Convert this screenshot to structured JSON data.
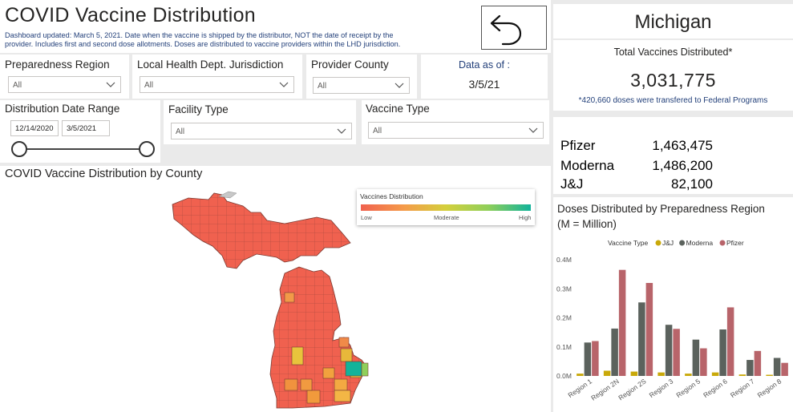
{
  "header": {
    "title": "COVID Vaccine Distribution",
    "subtitle_line1": "Dashboard updated: March 5, 2021. Date when the vaccine is shipped by the distributor, NOT the date of receipt by the",
    "subtitle_line2": "provider. Includes first and second dose allotments. Doses are distributed to vaccine providers within the LHD jurisdiction."
  },
  "filters": {
    "preparedness_region": {
      "label": "Preparedness Region",
      "value": "All"
    },
    "lhd_jurisdiction": {
      "label": "Local Health Dept. Jurisdiction",
      "value": "All"
    },
    "provider_county": {
      "label": "Provider County",
      "value": "All"
    },
    "facility_type": {
      "label": "Facility Type",
      "value": "All"
    },
    "vaccine_type": {
      "label": "Vaccine Type",
      "value": "All"
    },
    "date_range": {
      "label": "Distribution Date Range",
      "start": "12/14/2020",
      "end": "3/5/2021"
    }
  },
  "data_as_of": {
    "label": "Data as of :",
    "value": "3/5/21"
  },
  "state": {
    "name": "Michigan"
  },
  "totals": {
    "label": "Total Vaccines Distributed*",
    "value": "3,031,775",
    "note": "*420,660 doses were transfered to Federal Programs"
  },
  "vaccine_totals": [
    {
      "name": "Pfizer",
      "value": "1,463,475"
    },
    {
      "name": "Moderna",
      "value": "1,486,200"
    },
    {
      "name": "J&J",
      "value": "82,100"
    }
  ],
  "map": {
    "title": "COVID Vaccine Distribution by County",
    "legend_title": "Vaccines Distribution",
    "legend_low": "Low",
    "legend_mid": "Moderate",
    "legend_high": "High"
  },
  "colors": {
    "jj": "#c9a90a",
    "moderna": "#5b625d",
    "pfizer": "#b8646a",
    "map_low": "#f0614f",
    "map_mid": "#d4cf3c",
    "map_high": "#12b39a"
  },
  "chart_data": {
    "type": "bar",
    "title": "Doses Distributed by Preparedness Region",
    "subtitle": "(M = Million)",
    "legend_title": "Vaccine Type",
    "categories": [
      "Region 1",
      "Region 2N",
      "Region 2S",
      "Region 3",
      "Region 5",
      "Region 6",
      "Region 7",
      "Region 8"
    ],
    "series": [
      {
        "name": "J&J",
        "values": [
          0.008,
          0.018,
          0.015,
          0.012,
          0.008,
          0.012,
          0.005,
          0.004
        ]
      },
      {
        "name": "Moderna",
        "values": [
          0.115,
          0.163,
          0.253,
          0.176,
          0.125,
          0.16,
          0.055,
          0.062
        ]
      },
      {
        "name": "Pfizer",
        "values": [
          0.12,
          0.365,
          0.32,
          0.162,
          0.095,
          0.236,
          0.086,
          0.045
        ]
      }
    ],
    "y_ticks": [
      "0.0M",
      "0.1M",
      "0.2M",
      "0.3M",
      "0.4M"
    ],
    "ylim": [
      0,
      0.4
    ]
  }
}
